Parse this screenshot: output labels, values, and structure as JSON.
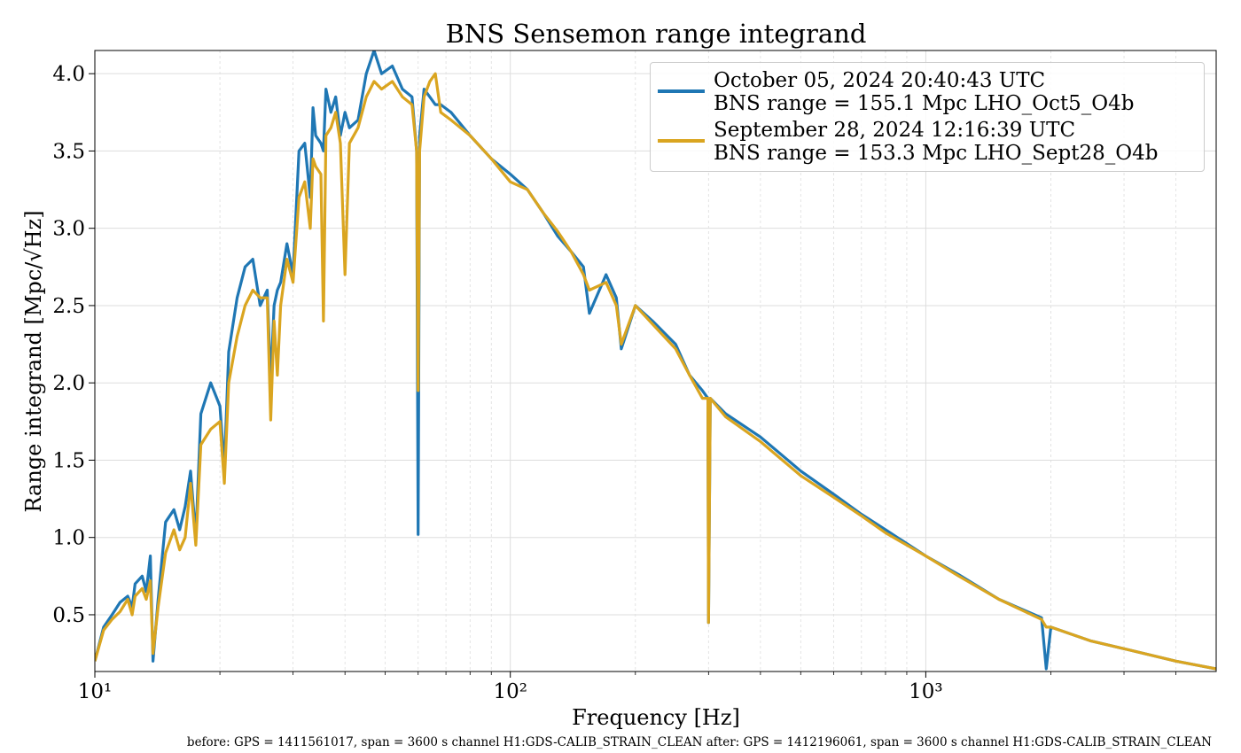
{
  "chart_data": {
    "type": "line",
    "title": "BNS Sensemon range integrand",
    "xlabel": "Frequency [Hz]",
    "ylabel": "Range integrand [Mpc/√Hz]",
    "footnote": "before: GPS = 1411561017, span = 3600 s channel H1:GDS-CALIB_STRAIN_CLEAN after: GPS = 1412196061, span = 3600 s channel H1:GDS-CALIB_STRAIN_CLEAN",
    "xscale": "log",
    "grid": true,
    "legend": "upper right",
    "xlim": [
      10,
      5000
    ],
    "ylim": [
      0.133,
      4.15
    ],
    "xticks": [
      {
        "value": 10,
        "label": "10¹"
      },
      {
        "value": 100,
        "label": "10²"
      },
      {
        "value": 1000,
        "label": "10³"
      }
    ],
    "xminorticks": [
      20,
      30,
      40,
      50,
      60,
      70,
      80,
      90,
      200,
      300,
      400,
      500,
      600,
      700,
      800,
      900,
      2000,
      3000,
      4000
    ],
    "yticks": [
      0.5,
      {
        "value": 1,
        "label": "1.0"
      },
      1.5,
      {
        "value": 2,
        "label": "2.0"
      },
      2.5,
      {
        "value": 3,
        "label": "3.0"
      },
      3.5,
      {
        "value": 4,
        "label": "4.0"
      }
    ],
    "x": [
      10,
      10.5,
      11,
      11.5,
      12,
      12.3,
      12.5,
      13,
      13.3,
      13.6,
      13.8,
      14.2,
      14.8,
      15.5,
      16,
      16.5,
      17,
      17.5,
      18,
      19,
      20,
      20.5,
      21,
      22,
      23,
      24,
      25,
      26,
      26.5,
      27,
      27.5,
      28,
      29,
      30,
      31,
      32,
      33,
      33.5,
      34,
      35,
      35.5,
      36,
      37,
      38,
      39,
      40,
      41,
      43,
      45,
      47,
      49,
      52,
      55,
      58,
      59.5,
      60,
      60.5,
      62,
      64,
      66,
      68,
      72,
      80,
      90,
      100,
      110,
      120,
      130,
      140,
      150,
      155,
      170,
      180,
      185,
      200,
      220,
      250,
      270,
      290,
      299,
      300,
      303,
      330,
      400,
      500,
      600,
      700,
      800,
      1000,
      1200,
      1500,
      1900,
      1950,
      2000,
      2500,
      3000,
      4000,
      5000
    ],
    "series": [
      {
        "name": "October 05, 2024 20:40:43 UTC\nBNS range = 155.1 Mpc LHO_Oct5_O4b",
        "color": "#1f77b4",
        "values": [
          0.2,
          0.42,
          0.5,
          0.58,
          0.62,
          0.55,
          0.7,
          0.75,
          0.65,
          0.88,
          0.2,
          0.6,
          1.1,
          1.18,
          1.05,
          1.2,
          1.43,
          1.0,
          1.8,
          2.0,
          1.85,
          1.45,
          2.2,
          2.55,
          2.75,
          2.8,
          2.5,
          2.6,
          2.0,
          2.5,
          2.6,
          2.65,
          2.9,
          2.7,
          3.5,
          3.55,
          3.2,
          3.78,
          3.6,
          3.55,
          3.5,
          3.9,
          3.75,
          3.85,
          3.6,
          3.75,
          3.65,
          3.7,
          4.0,
          4.15,
          4.0,
          4.05,
          3.9,
          3.85,
          3.5,
          1.02,
          3.6,
          3.9,
          3.85,
          3.8,
          3.8,
          3.75,
          3.6,
          3.45,
          3.35,
          3.25,
          3.1,
          2.95,
          2.85,
          2.75,
          2.45,
          2.7,
          2.55,
          2.22,
          2.5,
          2.4,
          2.25,
          2.05,
          1.95,
          1.9,
          0.45,
          1.9,
          1.8,
          1.65,
          1.43,
          1.28,
          1.15,
          1.05,
          0.88,
          0.76,
          0.6,
          0.48,
          0.15,
          0.42,
          0.33,
          0.28,
          0.2,
          0.15
        ]
      },
      {
        "name": "September 28, 2024 12:16:39 UTC\nBNS range = 153.3 Mpc LHO_Sept28_O4b",
        "color": "#daa520",
        "values": [
          0.2,
          0.4,
          0.47,
          0.52,
          0.6,
          0.5,
          0.62,
          0.67,
          0.6,
          0.72,
          0.25,
          0.55,
          0.9,
          1.05,
          0.92,
          1.0,
          1.35,
          0.95,
          1.6,
          1.7,
          1.75,
          1.35,
          2.0,
          2.3,
          2.5,
          2.6,
          2.55,
          2.55,
          1.76,
          2.4,
          2.05,
          2.5,
          2.8,
          2.65,
          3.2,
          3.3,
          3.0,
          3.45,
          3.4,
          3.35,
          2.4,
          3.6,
          3.65,
          3.75,
          3.55,
          2.7,
          3.55,
          3.65,
          3.85,
          3.95,
          3.9,
          3.95,
          3.85,
          3.8,
          3.5,
          1.95,
          3.5,
          3.85,
          3.95,
          4.0,
          3.75,
          3.7,
          3.6,
          3.45,
          3.3,
          3.25,
          3.1,
          2.98,
          2.85,
          2.7,
          2.6,
          2.65,
          2.5,
          2.25,
          2.5,
          2.38,
          2.22,
          2.05,
          1.9,
          1.9,
          0.45,
          1.9,
          1.78,
          1.62,
          1.4,
          1.26,
          1.14,
          1.03,
          0.88,
          0.75,
          0.6,
          0.47,
          0.42,
          0.42,
          0.33,
          0.28,
          0.2,
          0.15
        ]
      }
    ]
  }
}
